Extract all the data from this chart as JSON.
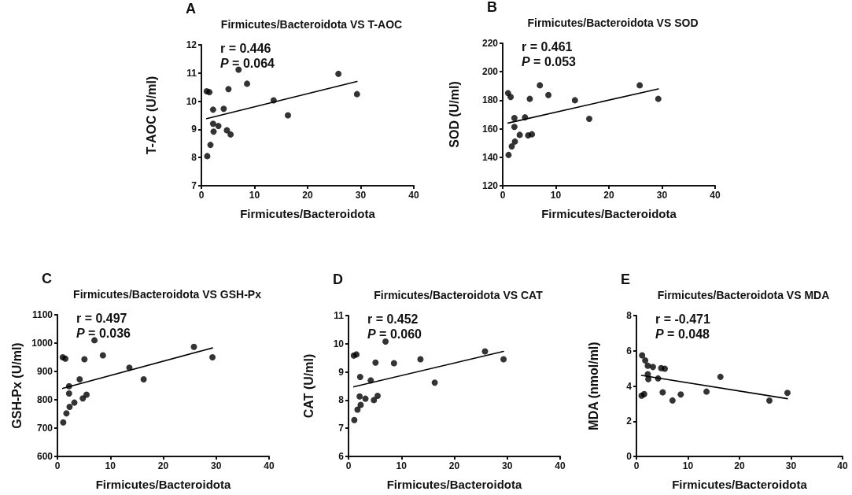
{
  "chart_data": [
    {
      "type": "scatter",
      "title": "Firmicutes/Bacteroidota VS T-AOC",
      "xlabel": "Firmicutes/Bacteroidota",
      "ylabel": "T-AOC (U/ml)",
      "xlim": [
        0,
        40
      ],
      "xticks": [
        0,
        10,
        20,
        30,
        40
      ],
      "ylim": [
        7,
        12
      ],
      "yticks": [
        7,
        8,
        9,
        10,
        11,
        12
      ],
      "annotations": [
        "A",
        "r = 0.446",
        "P = 0.064"
      ],
      "series": [
        {
          "type": "scatter",
          "marker": "circle",
          "color": "#000000",
          "x": [
            1.1,
            1.0,
            1.5,
            1.7,
            2.2,
            2.2,
            2.3,
            3.2,
            4.2,
            4.8,
            5.1,
            5.5,
            7.0,
            8.6,
            13.6,
            16.3,
            25.8,
            29.3
          ],
          "values": [
            8.05,
            10.35,
            10.32,
            8.45,
            9.7,
            9.2,
            8.92,
            9.12,
            9.73,
            8.97,
            10.43,
            8.82,
            11.12,
            10.62,
            10.03,
            9.5,
            10.97,
            10.25
          ]
        },
        {
          "type": "line",
          "marker": "none",
          "color": "#000000",
          "x": [
            1.0,
            29.3
          ],
          "values": [
            9.38,
            10.7
          ]
        }
      ]
    },
    {
      "type": "scatter",
      "title": "Firmicutes/Bacteroidota VS SOD",
      "xlabel": "Firmicutes/Bacteroidota",
      "ylabel": "SOD (U/ml)",
      "xlim": [
        0,
        40
      ],
      "xticks": [
        0,
        10,
        20,
        30,
        40
      ],
      "ylim": [
        120,
        220
      ],
      "yticks": [
        120,
        140,
        160,
        180,
        200,
        220
      ],
      "annotations": [
        "B",
        "r = 0.461",
        "P = 0.053"
      ],
      "series": [
        {
          "type": "scatter",
          "marker": "circle",
          "color": "#000000",
          "x": [
            1.1,
            1.0,
            1.5,
            1.7,
            2.2,
            2.2,
            2.3,
            3.2,
            4.2,
            4.8,
            5.1,
            5.5,
            7.0,
            8.6,
            13.6,
            16.3,
            25.8,
            29.3
          ],
          "values": [
            141.6,
            185,
            182.3,
            147.6,
            167.5,
            161.3,
            151,
            155.7,
            168,
            155.4,
            181,
            156.1,
            190.5,
            183.7,
            180,
            167,
            190.5,
            181
          ]
        },
        {
          "type": "line",
          "marker": "none",
          "color": "#000000",
          "x": [
            1.0,
            29.3
          ],
          "values": [
            164,
            188
          ]
        }
      ]
    },
    {
      "type": "scatter",
      "title": "Firmicutes/Bacteroidota VS GSH-Px",
      "xlabel": "Firmicutes/Bacteroidota",
      "ylabel": "GSH-Px (U/ml)",
      "xlim": [
        0,
        40
      ],
      "xticks": [
        0,
        10,
        20,
        30,
        40
      ],
      "ylim": [
        600,
        1100
      ],
      "yticks": [
        600,
        700,
        800,
        900,
        1000,
        1100
      ],
      "annotations": [
        "C",
        "r = 0.497",
        "P = 0.036"
      ],
      "series": [
        {
          "type": "scatter",
          "marker": "circle",
          "color": "#000000",
          "x": [
            1.1,
            1.0,
            1.5,
            1.7,
            2.2,
            2.2,
            2.3,
            3.2,
            4.2,
            4.8,
            5.1,
            5.5,
            7.0,
            8.6,
            13.6,
            16.3,
            25.8,
            29.3
          ],
          "values": [
            720,
            950,
            945,
            752,
            848,
            822,
            775,
            790,
            872,
            805,
            943,
            818,
            1010,
            957,
            913,
            872,
            987,
            950
          ]
        },
        {
          "type": "line",
          "marker": "none",
          "color": "#000000",
          "x": [
            1.0,
            29.3
          ],
          "values": [
            840,
            983
          ]
        }
      ]
    },
    {
      "type": "scatter",
      "title": "Firmicutes/Bacteroidota VS CAT",
      "xlabel": "Firmicutes/Bacteroidota",
      "ylabel": "CAT (U/ml)",
      "xlim": [
        0,
        40
      ],
      "xticks": [
        0,
        10,
        20,
        30,
        40
      ],
      "ylim": [
        6,
        11
      ],
      "yticks": [
        6,
        7,
        8,
        9,
        10,
        11
      ],
      "annotations": [
        "D",
        "r = 0.452",
        "P = 0.060"
      ],
      "series": [
        {
          "type": "scatter",
          "marker": "circle",
          "color": "#000000",
          "x": [
            1.1,
            1.0,
            1.5,
            1.7,
            2.2,
            2.1,
            2.3,
            3.2,
            4.2,
            4.8,
            5.1,
            5.5,
            7.0,
            8.6,
            13.6,
            16.3,
            25.8,
            29.3
          ],
          "values": [
            7.29,
            9.58,
            9.62,
            7.66,
            8.82,
            8.13,
            7.83,
            8.05,
            8.7,
            8.0,
            9.33,
            8.15,
            10.08,
            9.31,
            9.45,
            8.62,
            9.73,
            9.45
          ]
        },
        {
          "type": "line",
          "marker": "none",
          "color": "#000000",
          "x": [
            1.0,
            29.3
          ],
          "values": [
            8.47,
            9.73
          ]
        }
      ]
    },
    {
      "type": "scatter",
      "title": "Firmicutes/Bacteroidota VS MDA",
      "xlabel": "Firmicutes/Bacteroidota",
      "ylabel": "MDA (nmol/ml)",
      "xlim": [
        0,
        40
      ],
      "xticks": [
        0,
        10,
        20,
        30,
        40
      ],
      "ylim": [
        0,
        8
      ],
      "yticks": [
        0,
        2,
        4,
        6,
        8
      ],
      "annotations": [
        "E",
        "r = -0.471",
        "P = 0.048"
      ],
      "series": [
        {
          "type": "scatter",
          "marker": "circle",
          "color": "#000000",
          "x": [
            1.0,
            1.1,
            1.5,
            1.7,
            2.2,
            2.2,
            2.3,
            3.2,
            4.2,
            4.8,
            5.1,
            5.5,
            7.0,
            8.6,
            13.6,
            16.3,
            25.8,
            29.3
          ],
          "values": [
            3.45,
            5.74,
            3.54,
            5.45,
            5.15,
            4.67,
            4.39,
            5.08,
            4.43,
            5.02,
            3.64,
            4.98,
            3.18,
            3.52,
            3.68,
            4.52,
            3.17,
            3.61
          ]
        },
        {
          "type": "line",
          "marker": "none",
          "color": "#000000",
          "x": [
            1.0,
            29.3
          ],
          "values": [
            4.6,
            3.28
          ]
        }
      ]
    }
  ]
}
